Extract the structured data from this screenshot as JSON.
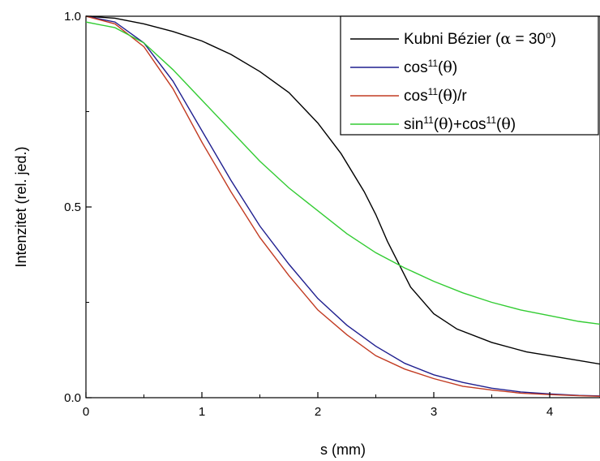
{
  "chart_data": {
    "type": "line",
    "xlabel": "s (mm)",
    "ylabel": "Intenzitet (rel. jed.)",
    "xlim": [
      0,
      4.5
    ],
    "ylim": [
      0,
      1.0
    ],
    "x_ticks": [
      "0",
      "1",
      "2",
      "3",
      "4"
    ],
    "y_ticks": [
      "0.0",
      "0.5",
      "1.0"
    ],
    "legend_position": "top-right",
    "series": [
      {
        "name": "Kubni Bézier (α = 30°)",
        "legend": {
          "base": "Kubni Bézier (",
          "greek": "α",
          "mid": " = 30",
          "sup": "o",
          "end": ")"
        },
        "color": "#000000",
        "x": [
          0,
          0.25,
          0.5,
          0.75,
          1.0,
          1.25,
          1.5,
          1.75,
          2.0,
          2.2,
          2.4,
          2.5,
          2.6,
          2.8,
          3.0,
          3.2,
          3.5,
          3.8,
          4.1,
          4.5
        ],
        "y": [
          1.0,
          0.995,
          0.98,
          0.96,
          0.935,
          0.9,
          0.855,
          0.8,
          0.72,
          0.64,
          0.54,
          0.48,
          0.41,
          0.29,
          0.22,
          0.18,
          0.145,
          0.12,
          0.105,
          0.085
        ]
      },
      {
        "name": "cos11(θ)",
        "legend": {
          "base": "cos",
          "sup": "11",
          "mid": "(",
          "greek": "θ",
          "end": ")"
        },
        "color": "#1f1f8f",
        "x": [
          0,
          0.25,
          0.5,
          0.75,
          1.0,
          1.25,
          1.5,
          1.75,
          2.0,
          2.25,
          2.5,
          2.75,
          3.0,
          3.25,
          3.5,
          3.75,
          4.0,
          4.25,
          4.5
        ],
        "y": [
          1.0,
          0.985,
          0.93,
          0.83,
          0.7,
          0.57,
          0.45,
          0.35,
          0.26,
          0.19,
          0.135,
          0.09,
          0.06,
          0.04,
          0.025,
          0.015,
          0.01,
          0.006,
          0.004
        ]
      },
      {
        "name": "cos11(θ)/r",
        "legend": {
          "base": "cos",
          "sup": "11",
          "mid": "(",
          "greek": "θ",
          "end": ")/r"
        },
        "color": "#c23b22",
        "x": [
          0,
          0.25,
          0.5,
          0.75,
          1.0,
          1.25,
          1.5,
          1.75,
          2.0,
          2.25,
          2.5,
          2.75,
          3.0,
          3.25,
          3.5,
          3.75,
          4.0,
          4.25,
          4.5
        ],
        "y": [
          1.0,
          0.98,
          0.92,
          0.81,
          0.67,
          0.54,
          0.42,
          0.32,
          0.23,
          0.165,
          0.11,
          0.075,
          0.05,
          0.03,
          0.02,
          0.012,
          0.008,
          0.005,
          0.003
        ]
      },
      {
        "name": "sin11(θ)+cos11(θ)",
        "legend": {
          "base": "sin",
          "sup": "11",
          "mid": "(",
          "greek": "θ",
          "end": ")+cos",
          "sup2": "11",
          "mid2": "(",
          "greek2": "θ",
          "end2": ")"
        },
        "color": "#33cc33",
        "x": [
          0,
          0.25,
          0.5,
          0.75,
          1.0,
          1.25,
          1.5,
          1.75,
          2.0,
          2.25,
          2.5,
          2.75,
          3.0,
          3.25,
          3.5,
          3.75,
          4.0,
          4.25,
          4.5
        ],
        "y": [
          0.985,
          0.97,
          0.93,
          0.86,
          0.78,
          0.7,
          0.62,
          0.55,
          0.49,
          0.43,
          0.38,
          0.34,
          0.305,
          0.275,
          0.25,
          0.23,
          0.215,
          0.2,
          0.19
        ]
      }
    ]
  }
}
